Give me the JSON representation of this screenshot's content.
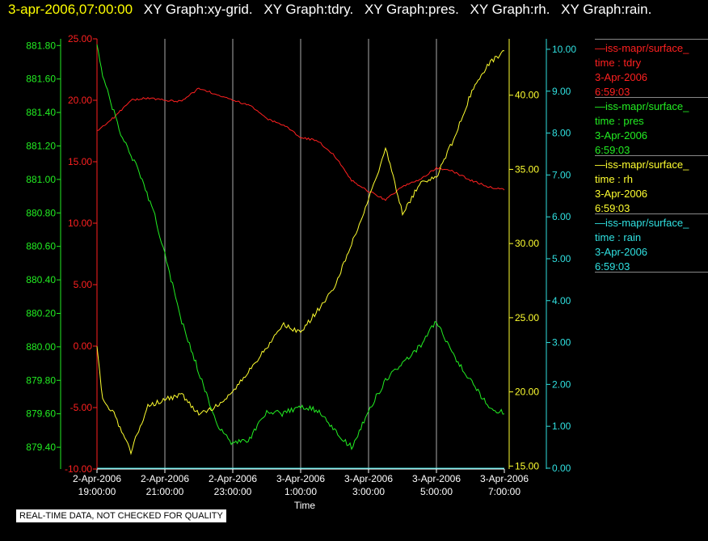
{
  "header": {
    "timestamp": "3-apr-2006,07:00:00",
    "titles": [
      "XY Graph:xy-grid.",
      "XY Graph:tdry.",
      "XY Graph:pres.",
      "XY Graph:rh.",
      "XY Graph:rain."
    ]
  },
  "legend": [
    {
      "source": "—iss-mapr/surface_",
      "var": "time : tdry",
      "date": "3-Apr-2006",
      "time": "6:59:03",
      "color": "#ff2020"
    },
    {
      "source": "—iss-mapr/surface_",
      "var": "time : pres",
      "date": "3-Apr-2006",
      "time": "6:59:03",
      "color": "#22ee22"
    },
    {
      "source": "—iss-mapr/surface_",
      "var": "time : rh",
      "date": "3-Apr-2006",
      "time": "6:59:03",
      "color": "#ffff30"
    },
    {
      "source": "—iss-mapr/surface_",
      "var": "time : rain",
      "date": "3-Apr-2006",
      "time": "6:59:03",
      "color": "#30e0e0"
    }
  ],
  "disclaimer": "REAL-TIME DATA, NOT CHECKED FOR QUALITY",
  "chart_data": {
    "type": "line",
    "xlabel": "Time",
    "x_ticks": [
      {
        "date": "2-Apr-2006",
        "time": "19:00:00"
      },
      {
        "date": "2-Apr-2006",
        "time": "21:00:00"
      },
      {
        "date": "2-Apr-2006",
        "time": "23:00:00"
      },
      {
        "date": "3-Apr-2006",
        "time": "1:00:00"
      },
      {
        "date": "3-Apr-2006",
        "time": "3:00:00"
      },
      {
        "date": "3-Apr-2006",
        "time": "5:00:00"
      },
      {
        "date": "3-Apr-2006",
        "time": "7:00:00"
      }
    ],
    "xlim": [
      "2006-04-02 19:00",
      "2006-04-03 07:00"
    ],
    "grid": "vertical",
    "axes": {
      "pres": {
        "ticks": [
          "881.80",
          "881.60",
          "881.40",
          "881.20",
          "881.00",
          "880.80",
          "880.60",
          "880.40",
          "880.20",
          "880.00",
          "879.80",
          "879.60",
          "879.40"
        ],
        "ylim": [
          879.27,
          881.84
        ],
        "color": "#22ee22"
      },
      "tdry": {
        "ticks": [
          "25.00",
          "20.00",
          "15.00",
          "10.00",
          "5.00",
          "0.00",
          "-5.00",
          "-10.00"
        ],
        "ylim": [
          -10,
          25
        ],
        "color": "#ff2020"
      },
      "rh": {
        "ticks": [
          "40.00",
          "35.00",
          "30.00",
          "25.00",
          "20.00",
          "15.00"
        ],
        "ylim": [
          14.8,
          43.8
        ],
        "color": "#ffff30"
      },
      "rain": {
        "ticks": [
          "10.00",
          "9.00",
          "8.00",
          "7.00",
          "6.00",
          "5.00",
          "4.00",
          "3.00",
          "2.00",
          "1.00",
          "0.00"
        ],
        "ylim": [
          -0.02,
          10.25
        ],
        "color": "#30e0e0"
      }
    },
    "series": [
      {
        "key": "tdry",
        "axis": "tdry",
        "color": "#ff2020",
        "x": [
          "2006-04-02 19:00",
          "2006-04-02 19:30",
          "2006-04-02 20:00",
          "2006-04-02 20:30",
          "2006-04-02 21:00",
          "2006-04-02 21:30",
          "2006-04-02 22:00",
          "2006-04-02 22:30",
          "2006-04-02 23:00",
          "2006-04-02 23:30",
          "2006-04-03 00:00",
          "2006-04-03 00:30",
          "2006-04-03 01:00",
          "2006-04-03 01:30",
          "2006-04-03 02:00",
          "2006-04-03 02:30",
          "2006-04-03 03:00",
          "2006-04-03 03:30",
          "2006-04-03 04:00",
          "2006-04-03 04:30",
          "2006-04-03 05:00",
          "2006-04-03 05:30",
          "2006-04-03 06:00",
          "2006-04-03 06:30",
          "2006-04-03 07:00"
        ],
        "y": [
          17.5,
          18.6,
          20.0,
          20.2,
          20.0,
          19.9,
          21.0,
          20.5,
          20.0,
          19.6,
          18.5,
          18.0,
          17.0,
          16.7,
          15.5,
          13.5,
          12.6,
          11.9,
          13.0,
          13.5,
          14.5,
          14.2,
          13.5,
          13.0,
          12.7
        ]
      },
      {
        "key": "pres",
        "axis": "pres",
        "color": "#22ee22",
        "x": [
          "2006-04-02 19:00",
          "2006-04-02 19:10",
          "2006-04-02 19:30",
          "2006-04-02 19:45",
          "2006-04-02 20:00",
          "2006-04-02 20:20",
          "2006-04-02 20:45",
          "2006-04-02 21:00",
          "2006-04-02 21:30",
          "2006-04-02 22:00",
          "2006-04-02 22:30",
          "2006-04-02 23:00",
          "2006-04-02 23:30",
          "2006-04-03 00:00",
          "2006-04-03 00:30",
          "2006-04-03 01:00",
          "2006-04-03 01:30",
          "2006-04-03 02:00",
          "2006-04-03 02:30",
          "2006-04-03 03:00",
          "2006-04-03 03:30",
          "2006-04-03 04:00",
          "2006-04-03 04:30",
          "2006-04-03 05:00",
          "2006-04-03 05:30",
          "2006-04-03 06:00",
          "2006-04-03 06:30",
          "2006-04-03 07:00"
        ],
        "y": [
          881.79,
          881.62,
          881.4,
          881.25,
          881.15,
          881.0,
          880.75,
          880.55,
          880.15,
          879.85,
          879.55,
          879.42,
          879.45,
          879.62,
          879.6,
          879.65,
          879.62,
          879.5,
          879.4,
          879.62,
          879.8,
          879.9,
          880.0,
          880.15,
          879.95,
          879.8,
          879.65,
          879.6
        ]
      },
      {
        "key": "rh",
        "axis": "rh",
        "color": "#ffff30",
        "x": [
          "2006-04-02 19:00",
          "2006-04-02 19:10",
          "2006-04-02 19:30",
          "2006-04-02 20:00",
          "2006-04-02 20:30",
          "2006-04-02 21:00",
          "2006-04-02 21:30",
          "2006-04-02 22:00",
          "2006-04-02 22:30",
          "2006-04-02 23:00",
          "2006-04-02 23:30",
          "2006-04-03 00:00",
          "2006-04-03 00:30",
          "2006-04-03 01:00",
          "2006-04-03 01:30",
          "2006-04-03 02:00",
          "2006-04-03 02:30",
          "2006-04-03 03:00",
          "2006-04-03 03:15",
          "2006-04-03 03:30",
          "2006-04-03 04:00",
          "2006-04-03 04:30",
          "2006-04-03 05:00",
          "2006-04-03 05:30",
          "2006-04-03 06:00",
          "2006-04-03 06:30",
          "2006-04-03 07:00"
        ],
        "y": [
          23.0,
          19.5,
          18.5,
          16.0,
          19.0,
          19.5,
          19.8,
          18.5,
          19.0,
          20.0,
          21.5,
          23.0,
          24.5,
          24.0,
          25.5,
          27.0,
          30.0,
          33.0,
          34.5,
          36.5,
          32.0,
          34.0,
          34.5,
          37.0,
          40.0,
          42.0,
          43.0
        ]
      },
      {
        "key": "rain",
        "axis": "rain",
        "color": "#30e0e0",
        "x": [
          "2006-04-02 19:00",
          "2006-04-03 07:00"
        ],
        "y": [
          0.0,
          0.0
        ]
      }
    ]
  }
}
